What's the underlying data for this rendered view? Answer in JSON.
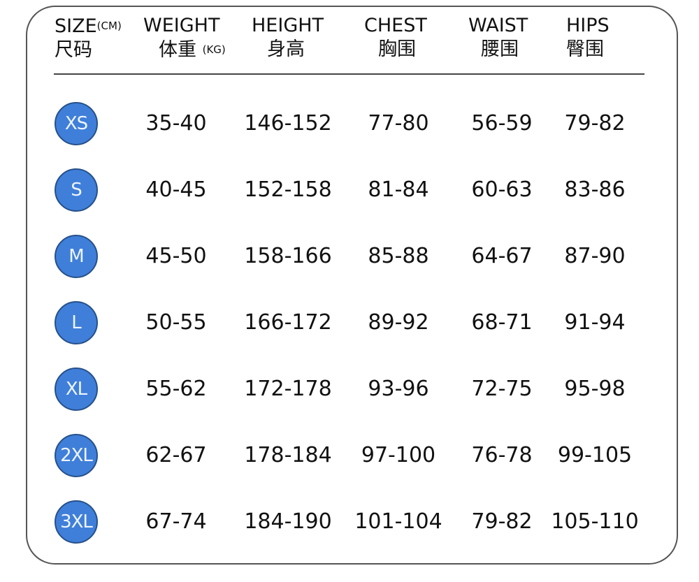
{
  "header": {
    "size": {
      "en": "SIZE",
      "unit": "(CM)",
      "zh": "尺码"
    },
    "weight": {
      "en": "WEIGHT",
      "zh": "体重",
      "unit": "(KG)"
    },
    "height": {
      "en": "HEIGHT",
      "zh": "身高"
    },
    "chest": {
      "en": "CHEST",
      "zh": "胸围"
    },
    "waist": {
      "en": "WAIST",
      "zh": "腰围"
    },
    "hips": {
      "en": "HIPS",
      "zh": "臀围"
    }
  },
  "accent_color": "#3f7fd9",
  "rows": [
    {
      "size": "XS",
      "weight": "35-40",
      "height": "146-152",
      "chest": "77-80",
      "waist": "56-59",
      "hips": "79-82"
    },
    {
      "size": "S",
      "weight": "40-45",
      "height": "152-158",
      "chest": "81-84",
      "waist": "60-63",
      "hips": "83-86"
    },
    {
      "size": "M",
      "weight": "45-50",
      "height": "158-166",
      "chest": "85-88",
      "waist": "64-67",
      "hips": "87-90"
    },
    {
      "size": "L",
      "weight": "50-55",
      "height": "166-172",
      "chest": "89-92",
      "waist": "68-71",
      "hips": "91-94"
    },
    {
      "size": "XL",
      "weight": "55-62",
      "height": "172-178",
      "chest": "93-96",
      "waist": "72-75",
      "hips": "95-98"
    },
    {
      "size": "2XL",
      "weight": "62-67",
      "height": "178-184",
      "chest": "97-100",
      "waist": "76-78",
      "hips": "99-105"
    },
    {
      "size": "3XL",
      "weight": "67-74",
      "height": "184-190",
      "chest": "101-104",
      "waist": "79-82",
      "hips": "105-110"
    }
  ]
}
